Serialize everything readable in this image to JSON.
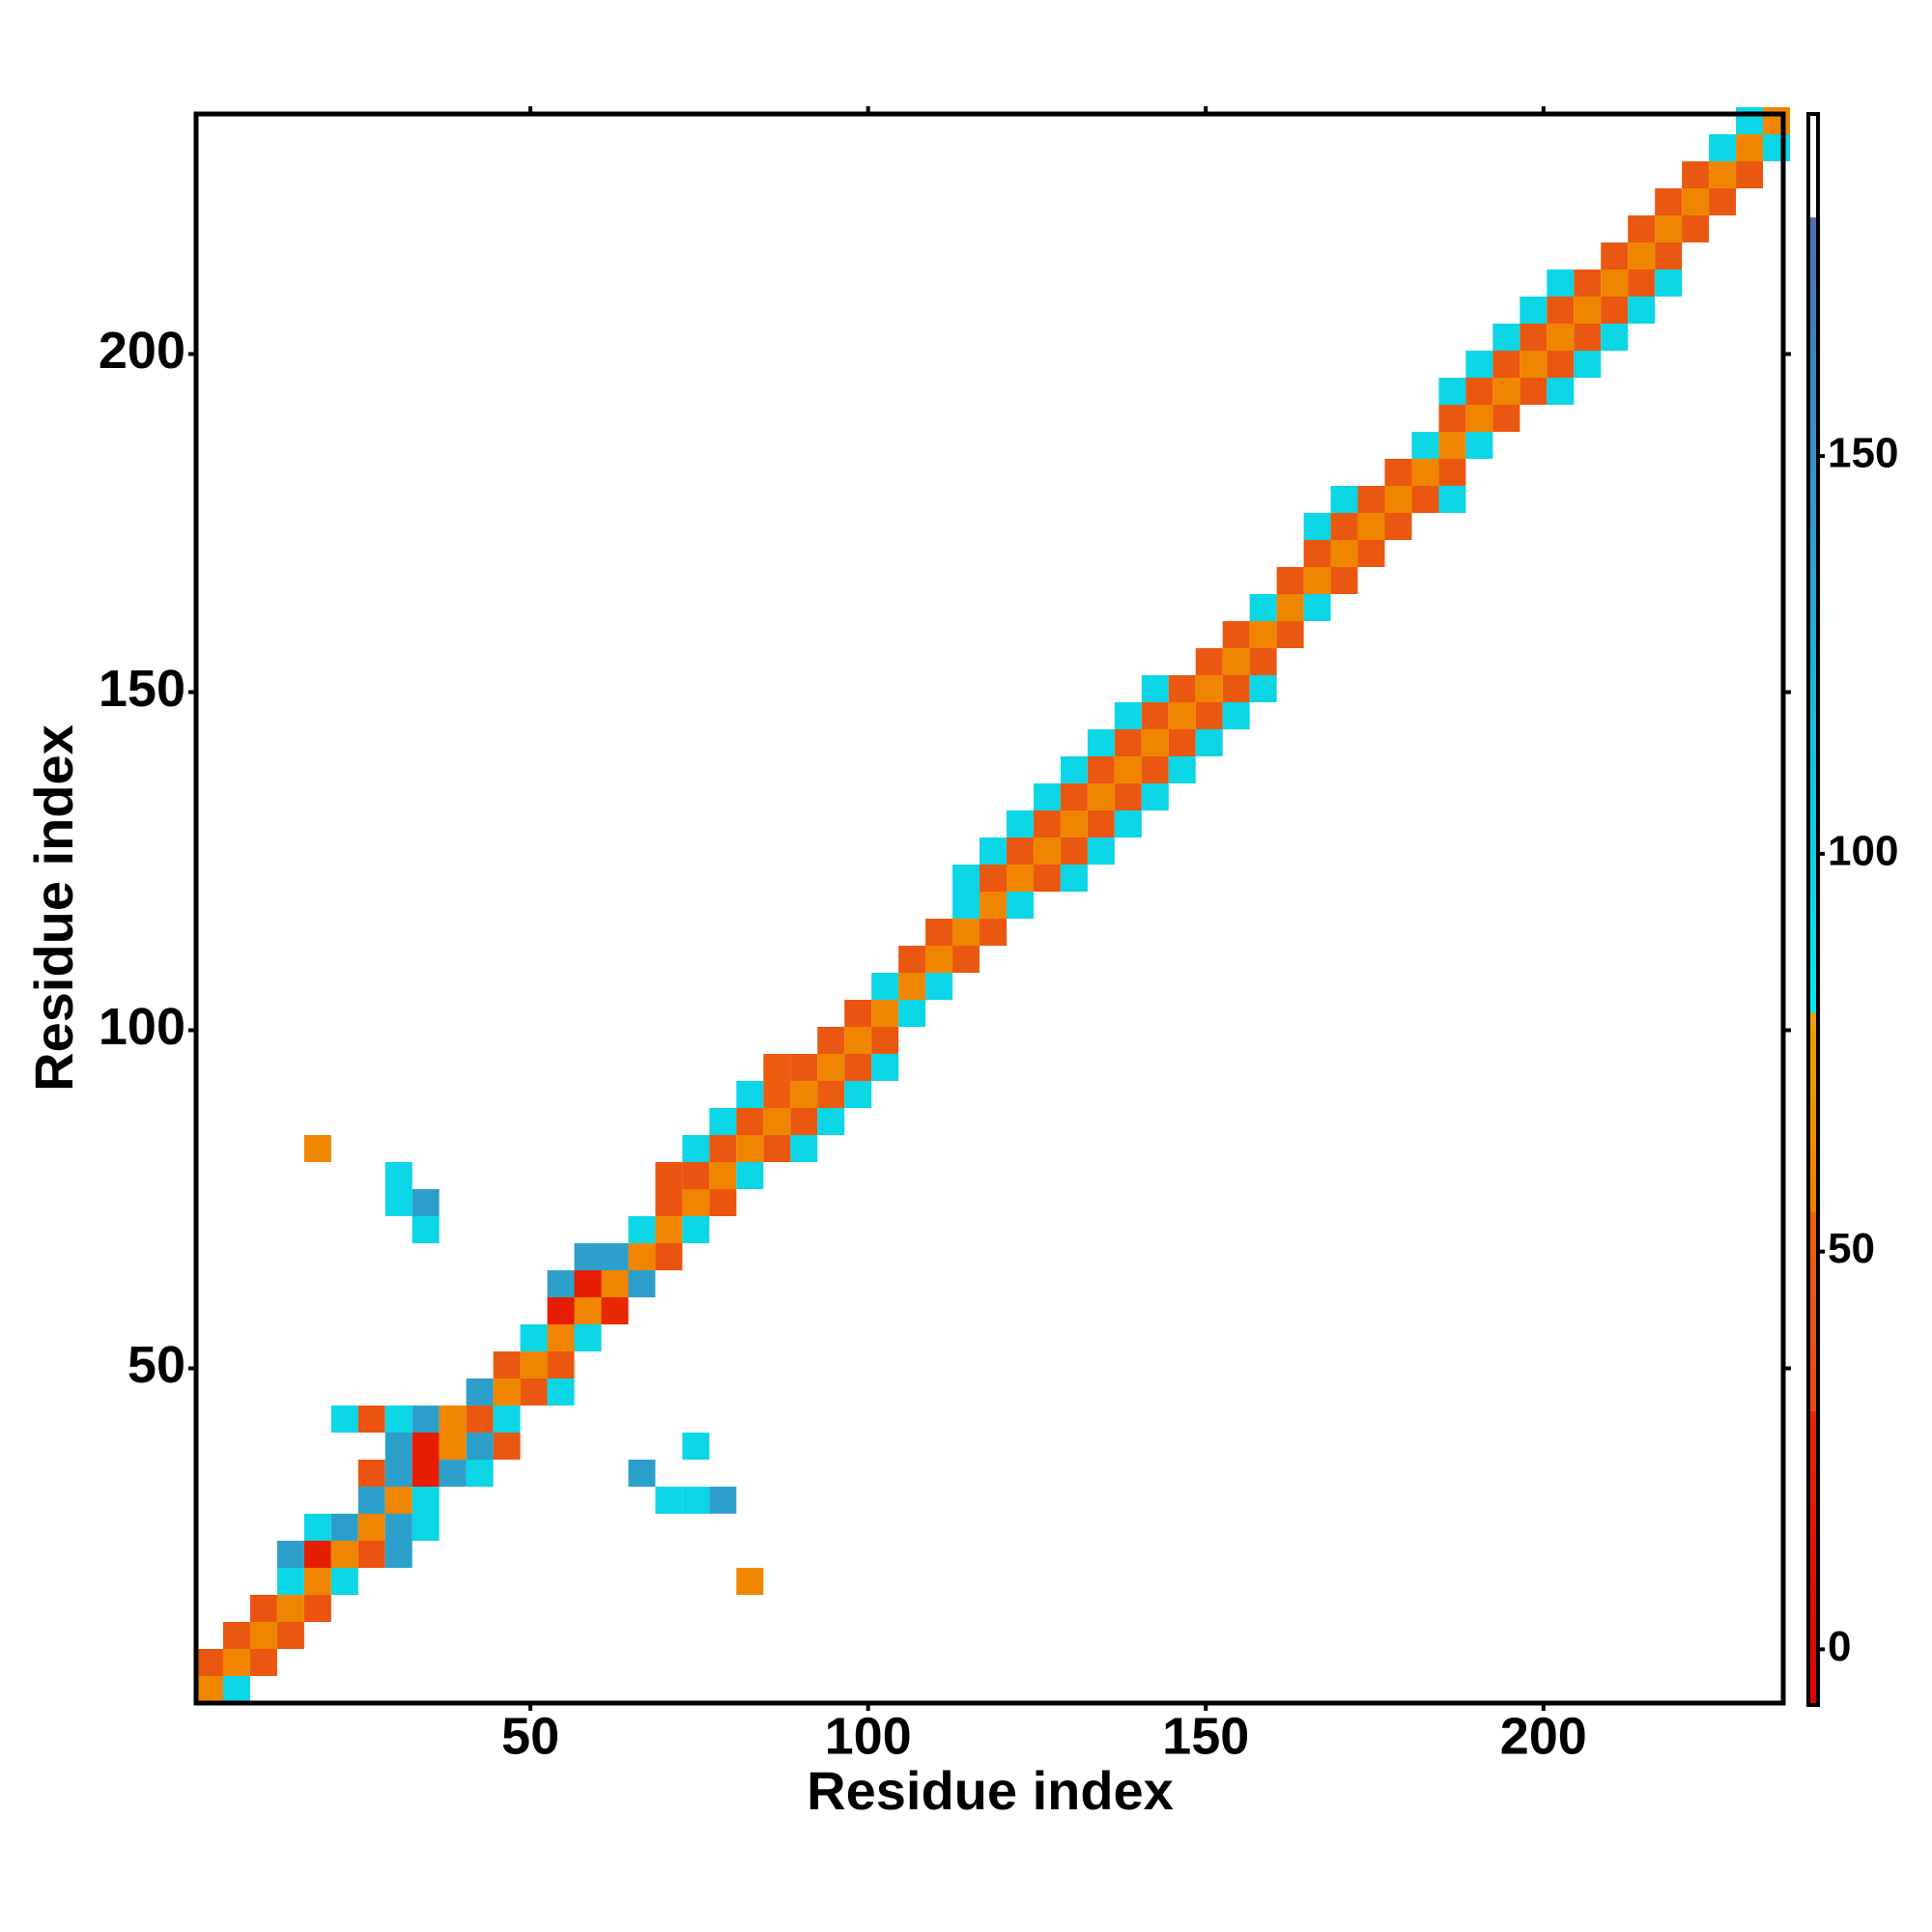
{
  "chart_data": {
    "type": "heatmap",
    "xlabel": "Residue index",
    "ylabel": "Residue index",
    "xlim": [
      0.5,
      235.5
    ],
    "ylim": [
      0.5,
      235.5
    ],
    "xticks": [
      50,
      100,
      150,
      200
    ],
    "yticks": [
      50,
      100,
      150,
      200
    ],
    "cells": [
      {
        "y": 1,
        "x": 1,
        "values": [
          60,
          95
        ]
      },
      {
        "y": 5,
        "x": 1,
        "values": [
          45,
          60,
          45
        ]
      },
      {
        "y": 9,
        "x": 5,
        "values": [
          45,
          60,
          45
        ]
      },
      {
        "y": 13,
        "x": 9,
        "values": [
          40,
          60,
          40
        ]
      },
      {
        "y": 17,
        "x": 13,
        "values": [
          95,
          60,
          95
        ]
      },
      {
        "y": 17,
        "x": 81,
        "values": [
          60
        ]
      },
      {
        "y": 21,
        "x": 13,
        "values": [
          140,
          20,
          60,
          40,
          140
        ]
      },
      {
        "y": 25,
        "x": 17,
        "values": [
          95,
          140,
          60,
          140,
          95
        ]
      },
      {
        "y": 29,
        "x": 25,
        "values": [
          140,
          60,
          95
        ]
      },
      {
        "y": 29,
        "x": 69,
        "values": [
          95,
          95,
          140
        ]
      },
      {
        "y": 33,
        "x": 25,
        "values": [
          40,
          140,
          20,
          140,
          95
        ]
      },
      {
        "y": 33,
        "x": 65,
        "values": [
          140
        ]
      },
      {
        "y": 37,
        "x": 29,
        "values": [
          140,
          20,
          60,
          140,
          45
        ]
      },
      {
        "y": 37,
        "x": 73,
        "values": [
          95
        ]
      },
      {
        "y": 41,
        "x": 21,
        "values": [
          95,
          40,
          95,
          140,
          60,
          45,
          95
        ]
      },
      {
        "y": 45,
        "x": 41,
        "values": [
          140,
          60,
          45,
          95
        ]
      },
      {
        "y": 49,
        "x": 45,
        "values": [
          45,
          60,
          45
        ]
      },
      {
        "y": 53,
        "x": 49,
        "values": [
          95,
          60,
          95
        ]
      },
      {
        "y": 57,
        "x": 53,
        "values": [
          20,
          60,
          30
        ]
      },
      {
        "y": 61,
        "x": 53,
        "values": [
          140,
          20,
          60,
          140
        ]
      },
      {
        "y": 65,
        "x": 57,
        "values": [
          140,
          140,
          60,
          40
        ]
      },
      {
        "y": 69,
        "x": 33,
        "values": [
          95
        ]
      },
      {
        "y": 69,
        "x": 65,
        "values": [
          95,
          60,
          95
        ]
      },
      {
        "y": 73,
        "x": 29,
        "values": [
          95,
          140
        ]
      },
      {
        "y": 73,
        "x": 69,
        "values": [
          40,
          60,
          40
        ]
      },
      {
        "y": 77,
        "x": 29,
        "values": [
          95
        ]
      },
      {
        "y": 77,
        "x": 69,
        "values": [
          40,
          40,
          60,
          95
        ]
      },
      {
        "y": 81,
        "x": 17,
        "values": [
          60
        ]
      },
      {
        "y": 81,
        "x": 73,
        "values": [
          95,
          45,
          60,
          45,
          95
        ]
      },
      {
        "y": 85,
        "x": 77,
        "values": [
          95,
          45,
          60,
          45,
          95
        ]
      },
      {
        "y": 89,
        "x": 81,
        "values": [
          95,
          50,
          60,
          50,
          95
        ]
      },
      {
        "y": 93,
        "x": 85,
        "values": [
          50,
          45,
          60,
          45,
          95
        ]
      },
      {
        "y": 97,
        "x": 93,
        "values": [
          45,
          60,
          45
        ]
      },
      {
        "y": 101,
        "x": 97,
        "values": [
          40,
          60,
          95
        ]
      },
      {
        "y": 105,
        "x": 101,
        "values": [
          95,
          60,
          95
        ]
      },
      {
        "y": 109,
        "x": 105,
        "values": [
          45,
          60,
          45
        ]
      },
      {
        "y": 113,
        "x": 109,
        "values": [
          45,
          60,
          45
        ]
      },
      {
        "y": 117,
        "x": 113,
        "values": [
          95,
          60,
          95
        ]
      },
      {
        "y": 121,
        "x": 113,
        "values": [
          95,
          45,
          60,
          45,
          95
        ]
      },
      {
        "y": 125,
        "x": 117,
        "values": [
          95,
          45,
          60,
          45,
          95
        ]
      },
      {
        "y": 129,
        "x": 121,
        "values": [
          95,
          45,
          60,
          45,
          95
        ]
      },
      {
        "y": 133,
        "x": 125,
        "values": [
          95,
          45,
          60,
          45,
          95
        ]
      },
      {
        "y": 137,
        "x": 129,
        "values": [
          95,
          45,
          60,
          45,
          95
        ]
      },
      {
        "y": 141,
        "x": 133,
        "values": [
          95,
          45,
          60,
          45,
          95
        ]
      },
      {
        "y": 145,
        "x": 137,
        "values": [
          95,
          45,
          60,
          45,
          95
        ]
      },
      {
        "y": 149,
        "x": 141,
        "values": [
          95,
          45,
          60,
          45,
          95
        ]
      },
      {
        "y": 153,
        "x": 149,
        "values": [
          45,
          60,
          45
        ]
      },
      {
        "y": 157,
        "x": 153,
        "values": [
          45,
          60,
          45
        ]
      },
      {
        "y": 161,
        "x": 157,
        "values": [
          95,
          60,
          95
        ]
      },
      {
        "y": 165,
        "x": 161,
        "values": [
          45,
          60,
          45
        ]
      },
      {
        "y": 169,
        "x": 165,
        "values": [
          45,
          60,
          45
        ]
      },
      {
        "y": 173,
        "x": 165,
        "values": [
          95,
          45,
          60,
          45
        ]
      },
      {
        "y": 177,
        "x": 169,
        "values": [
          95,
          45,
          60,
          45,
          95
        ]
      },
      {
        "y": 181,
        "x": 177,
        "values": [
          45,
          60,
          45
        ]
      },
      {
        "y": 185,
        "x": 181,
        "values": [
          95,
          60,
          95
        ]
      },
      {
        "y": 189,
        "x": 185,
        "values": [
          45,
          60,
          45
        ]
      },
      {
        "y": 193,
        "x": 185,
        "values": [
          95,
          45,
          60,
          45,
          95
        ]
      },
      {
        "y": 197,
        "x": 189,
        "values": [
          95,
          45,
          60,
          45,
          95
        ]
      },
      {
        "y": 201,
        "x": 193,
        "values": [
          95,
          45,
          60,
          45,
          95
        ]
      },
      {
        "y": 205,
        "x": 197,
        "values": [
          95,
          45,
          60,
          45,
          95
        ]
      },
      {
        "y": 209,
        "x": 201,
        "values": [
          95,
          45,
          60,
          45,
          95
        ]
      },
      {
        "y": 213,
        "x": 209,
        "values": [
          45,
          60,
          45
        ]
      },
      {
        "y": 217,
        "x": 213,
        "values": [
          45,
          60,
          45
        ]
      },
      {
        "y": 221,
        "x": 217,
        "values": [
          45,
          60,
          45
        ]
      },
      {
        "y": 225,
        "x": 221,
        "values": [
          45,
          60,
          45
        ]
      },
      {
        "y": 229,
        "x": 225,
        "values": [
          95,
          60,
          95
        ]
      },
      {
        "y": 233,
        "x": 229,
        "values": [
          95,
          60
        ]
      }
    ],
    "colorbar": {
      "ylim": [
        -7,
        193
      ],
      "yticks": [
        0,
        50,
        100,
        150
      ],
      "bands": [
        {
          "from": -7,
          "to": 30,
          "colors": [
            "#e00000",
            "#e82800"
          ]
        },
        {
          "from": 30,
          "to": 55,
          "colors": [
            "#e84a10",
            "#ec6010"
          ]
        },
        {
          "from": 55,
          "to": 80,
          "colors": [
            "#f08000",
            "#f0a000"
          ]
        },
        {
          "from": 80,
          "to": 180,
          "colors": [
            "#00e8f0",
            "#4a70b0"
          ]
        },
        {
          "from": 180,
          "to": 193,
          "colors": [
            "#ffffff",
            "#ffffff"
          ]
        }
      ]
    }
  }
}
